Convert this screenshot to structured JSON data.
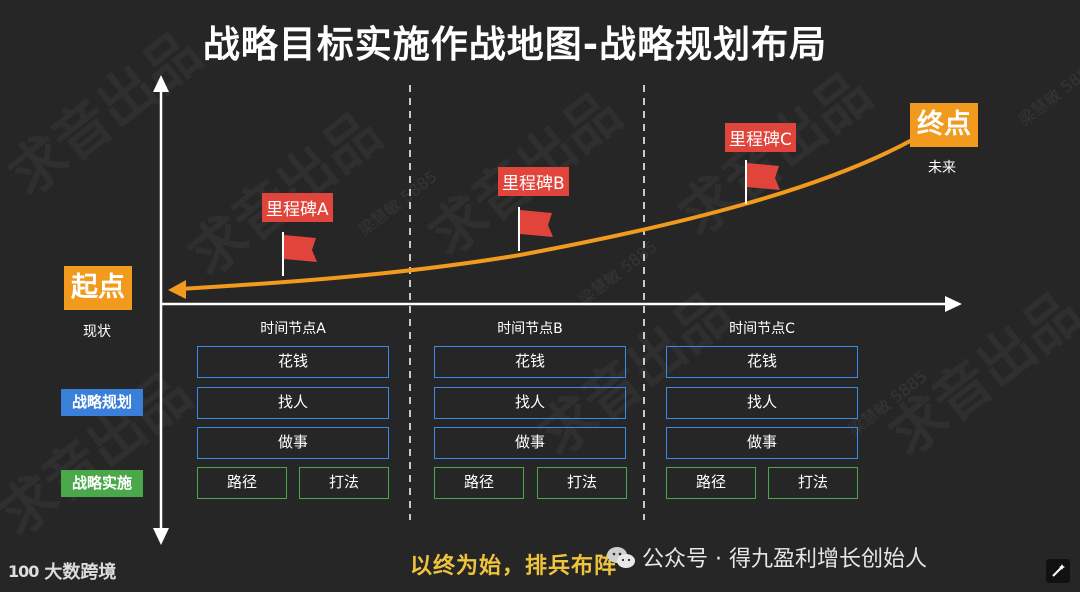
{
  "title": "战略目标实施作战地图-战略规划布局",
  "start": {
    "label": "起点",
    "sub": "现状"
  },
  "end": {
    "label": "终点",
    "sub": "未来"
  },
  "milestones": [
    "里程碑A",
    "里程碑B",
    "里程碑C"
  ],
  "time_nodes": [
    "时间节点A",
    "时间节点B",
    "时间节点C"
  ],
  "rows": {
    "spend": "花钱",
    "people": "找人",
    "work": "做事",
    "path": "路径",
    "play": "打法"
  },
  "row_tags": {
    "planning": "战略规划",
    "execution": "战略实施"
  },
  "slogan": "以终为始，排兵布阵",
  "credit": "公众号 · 得九盈利增长创始人",
  "logo": {
    "mark": "100",
    "text": "大数跨境"
  },
  "watermark": {
    "big": "求音出品",
    "small": "梁慧敏 5885"
  },
  "colors": {
    "orange": "#f19a1d",
    "red": "#e0443a",
    "blue": "#3a8be8",
    "green": "#4aa84a",
    "yellow": "#f0c33c"
  }
}
